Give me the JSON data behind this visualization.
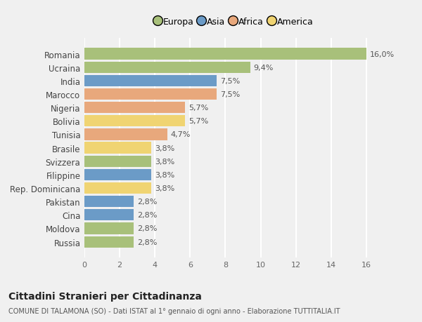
{
  "countries": [
    "Romania",
    "Ucraina",
    "India",
    "Marocco",
    "Nigeria",
    "Bolivia",
    "Tunisia",
    "Brasile",
    "Svizzera",
    "Filippine",
    "Rep. Dominicana",
    "Pakistan",
    "Cina",
    "Moldova",
    "Russia"
  ],
  "values": [
    16.0,
    9.4,
    7.5,
    7.5,
    5.7,
    5.7,
    4.7,
    3.8,
    3.8,
    3.8,
    3.8,
    2.8,
    2.8,
    2.8,
    2.8
  ],
  "labels": [
    "16,0%",
    "9,4%",
    "7,5%",
    "7,5%",
    "5,7%",
    "5,7%",
    "4,7%",
    "3,8%",
    "3,8%",
    "3,8%",
    "3,8%",
    "2,8%",
    "2,8%",
    "2,8%",
    "2,8%"
  ],
  "continents": [
    "Europa",
    "Europa",
    "Asia",
    "Africa",
    "Africa",
    "America",
    "Africa",
    "America",
    "Europa",
    "Asia",
    "America",
    "Asia",
    "Asia",
    "Europa",
    "Europa"
  ],
  "continent_colors": {
    "Europa": "#a8c07a",
    "Asia": "#6b9bc7",
    "Africa": "#e8a87c",
    "America": "#f0d472"
  },
  "bg_color": "#f0f0f0",
  "plot_bg_color": "#f0f0f0",
  "grid_color": "#ffffff",
  "title": "Cittadini Stranieri per Cittadinanza",
  "subtitle": "COMUNE DI TALAMONA (SO) - Dati ISTAT al 1° gennaio di ogni anno - Elaborazione TUTTITALIA.IT",
  "xlim": [
    0,
    17
  ],
  "xticks": [
    0,
    2,
    4,
    6,
    8,
    10,
    12,
    14,
    16
  ],
  "legend_order": [
    "Europa",
    "Asia",
    "Africa",
    "America"
  ]
}
